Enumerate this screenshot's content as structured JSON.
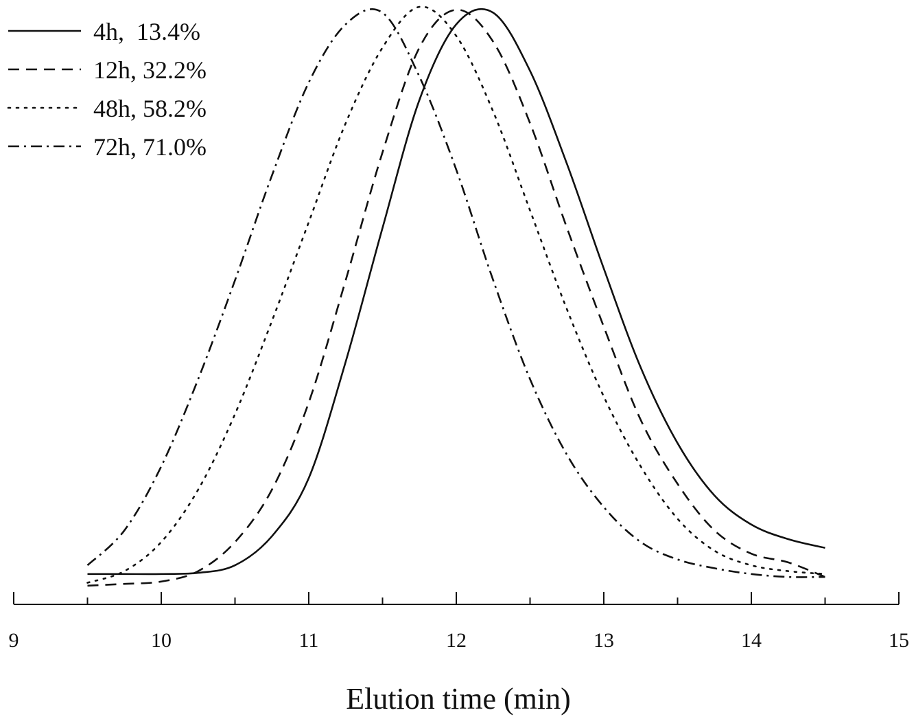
{
  "chart_data": {
    "type": "line",
    "title": "",
    "xlabel": "Elution time (min)",
    "ylabel": "",
    "xlim": [
      9,
      15
    ],
    "ylim": [
      0,
      1
    ],
    "x_ticks": [
      "9",
      "10",
      "11",
      "12",
      "13",
      "14",
      "15"
    ],
    "grid": false,
    "legend_position": "top-left",
    "x": [
      9.5,
      9.75,
      10.0,
      10.25,
      10.5,
      10.75,
      11.0,
      11.25,
      11.5,
      11.75,
      12.0,
      12.25,
      12.5,
      12.75,
      13.0,
      13.25,
      13.5,
      13.75,
      14.0,
      14.25,
      14.5
    ],
    "series": [
      {
        "name": "4h,  13.4%",
        "dash": "solid",
        "values": [
          0.025,
          0.025,
          0.025,
          0.027,
          0.04,
          0.09,
          0.19,
          0.39,
          0.62,
          0.84,
          0.97,
          0.99,
          0.89,
          0.73,
          0.55,
          0.38,
          0.25,
          0.16,
          0.11,
          0.085,
          0.07
        ]
      },
      {
        "name": "12h, 32.2%",
        "dash": "dashed",
        "values": [
          0.005,
          0.008,
          0.012,
          0.03,
          0.08,
          0.17,
          0.32,
          0.53,
          0.75,
          0.93,
          0.995,
          0.94,
          0.8,
          0.62,
          0.45,
          0.29,
          0.18,
          0.1,
          0.06,
          0.045,
          0.02
        ]
      },
      {
        "name": "48h, 58.2%",
        "dash": "dotted",
        "values": [
          0.01,
          0.03,
          0.08,
          0.17,
          0.3,
          0.46,
          0.63,
          0.8,
          0.93,
          1.0,
          0.95,
          0.82,
          0.65,
          0.48,
          0.33,
          0.21,
          0.12,
          0.065,
          0.04,
          0.03,
          0.025
        ]
      },
      {
        "name": "72h, 71.0%",
        "dash": "dash-dot",
        "values": [
          0.04,
          0.1,
          0.21,
          0.36,
          0.53,
          0.71,
          0.87,
          0.97,
          0.99,
          0.88,
          0.72,
          0.53,
          0.36,
          0.23,
          0.14,
          0.08,
          0.05,
          0.035,
          0.025,
          0.02,
          0.02
        ]
      }
    ]
  }
}
